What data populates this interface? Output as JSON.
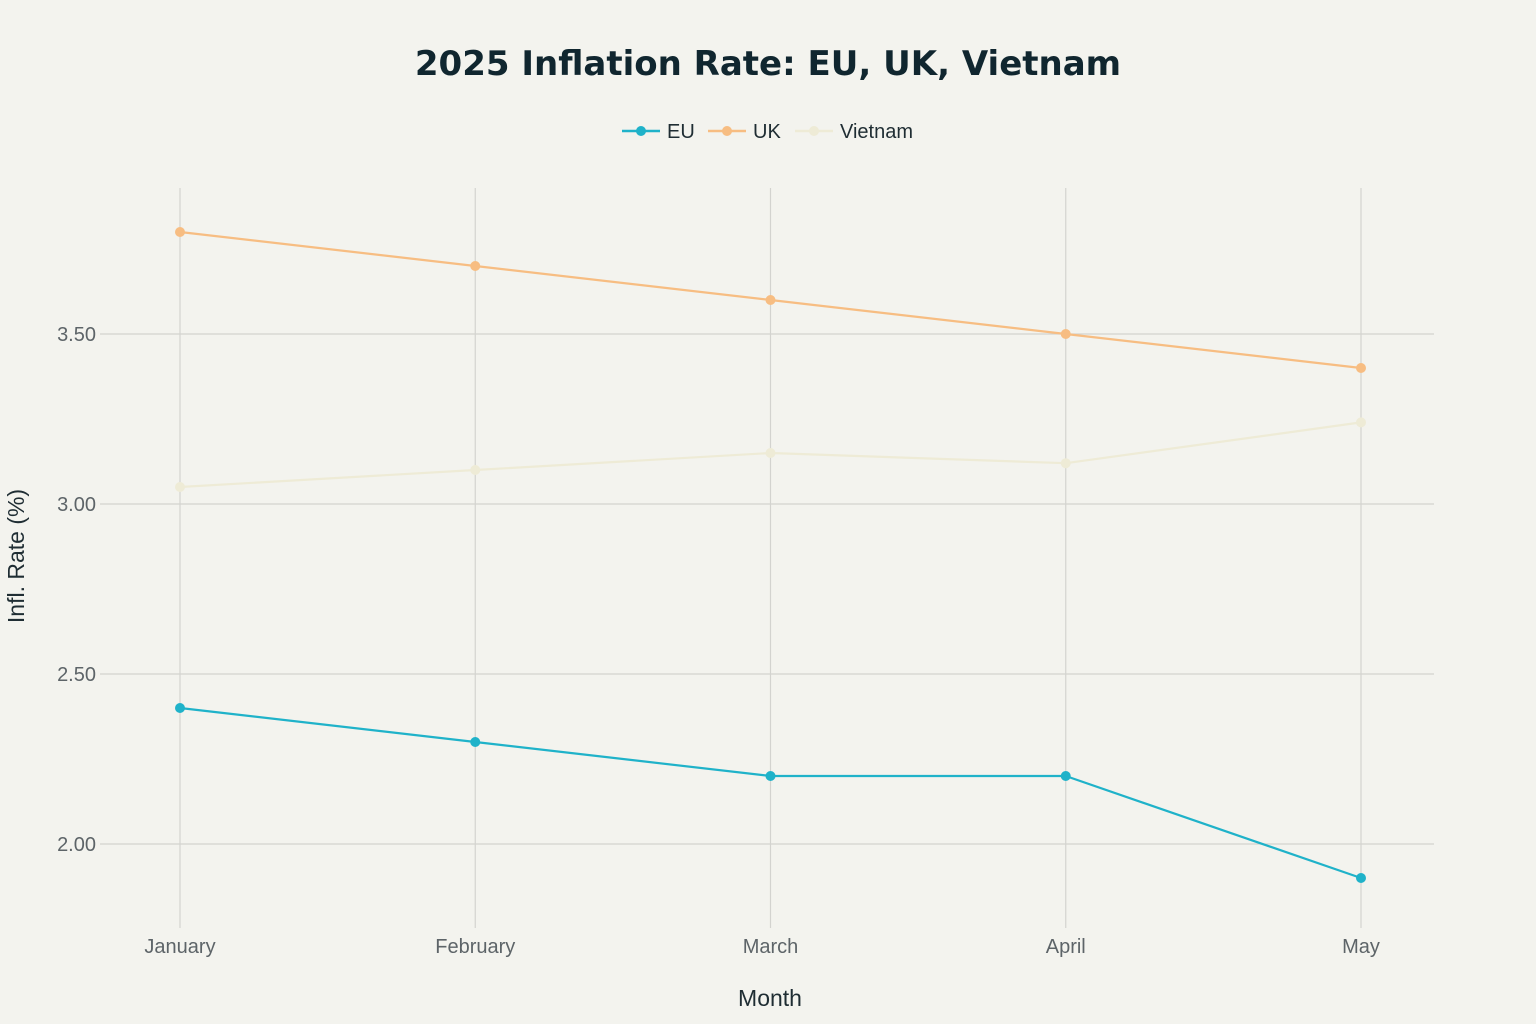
{
  "chart_data": {
    "type": "line",
    "title": "2025 Inflation Rate: EU, UK, Vietnam",
    "xlabel": "Month",
    "ylabel": "Infl. Rate (%)",
    "categories": [
      "January",
      "February",
      "March",
      "April",
      "May"
    ],
    "ylim": [
      1.75,
      3.95
    ],
    "yticks": [
      2.0,
      2.5,
      3.0,
      3.5
    ],
    "ytick_labels": [
      "2.00",
      "2.50",
      "3.00",
      "3.50"
    ],
    "grid": true,
    "legend": "top-center",
    "series": [
      {
        "name": "EU",
        "color": "#1fb2c9",
        "values": [
          2.4,
          2.3,
          2.2,
          2.2,
          1.9
        ]
      },
      {
        "name": "UK",
        "color": "#f7bd82",
        "values": [
          3.8,
          3.7,
          3.6,
          3.5,
          3.4
        ]
      },
      {
        "name": "Vietnam",
        "color": "#eeebd6",
        "values": [
          3.05,
          3.1,
          3.15,
          3.12,
          3.24
        ]
      }
    ]
  }
}
